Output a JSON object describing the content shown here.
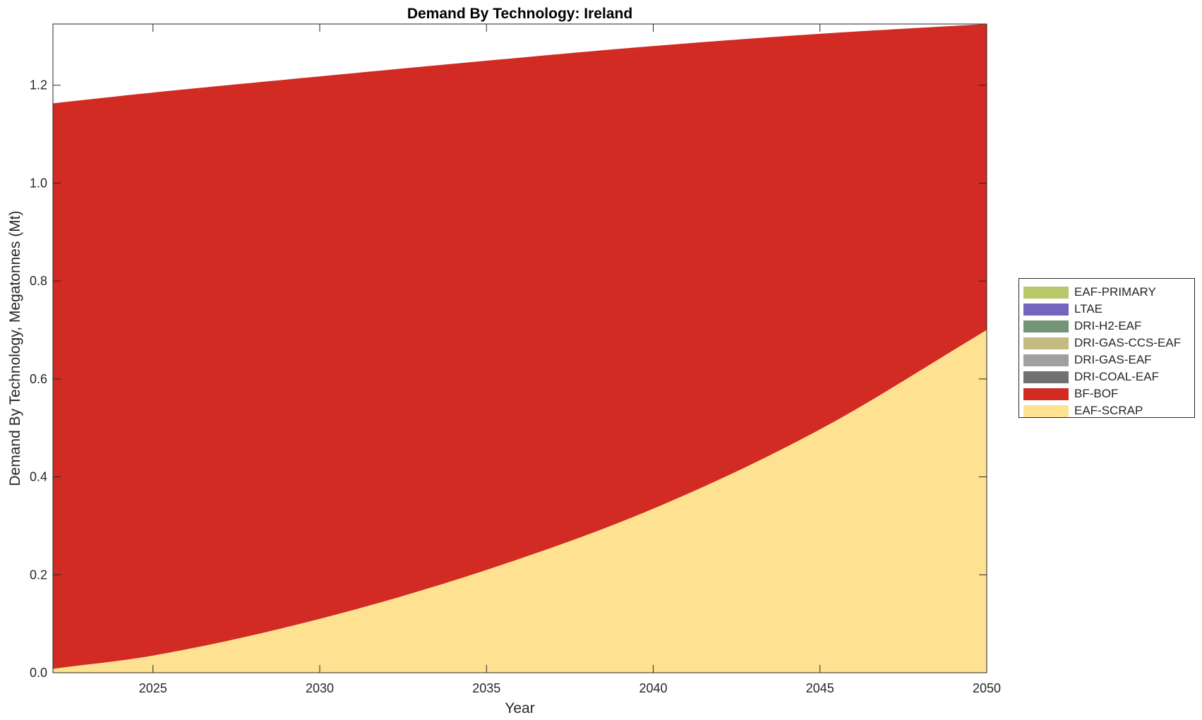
{
  "chart_data": {
    "type": "area",
    "stacked": true,
    "title": "Demand By Technology: Ireland",
    "xlabel": "Year",
    "ylabel": "Demand By Technology, Megatonnes (Mt)",
    "xlim": [
      2022,
      2050
    ],
    "ylim": [
      0,
      1.325
    ],
    "xticks": [
      2025,
      2030,
      2035,
      2040,
      2045,
      2050
    ],
    "xtick_labels": [
      "2025",
      "2030",
      "2035",
      "2040",
      "2045",
      "2050"
    ],
    "yticks": [
      0,
      0.2,
      0.4,
      0.6,
      0.8,
      1.0,
      1.2
    ],
    "ytick_labels": [
      "0.0",
      "0.2",
      "0.4",
      "0.6",
      "0.8",
      "1.0",
      "1.2"
    ],
    "grid": false,
    "legend_position": "right",
    "x": [
      2022,
      2025,
      2030,
      2035,
      2040,
      2045,
      2050
    ],
    "series": [
      {
        "name": "EAF-SCRAP",
        "color": "#FFE291",
        "values": [
          0.008,
          0.035,
          0.11,
          0.21,
          0.335,
          0.497,
          0.7
        ]
      },
      {
        "name": "BF-BOF",
        "color": "#D12B23",
        "values": [
          1.155,
          1.15,
          1.108,
          1.04,
          0.945,
          0.808,
          0.625
        ]
      },
      {
        "name": "DRI-COAL-EAF",
        "color": "#707070",
        "values": [
          0,
          0,
          0,
          0,
          0,
          0,
          0
        ]
      },
      {
        "name": "DRI-GAS-EAF",
        "color": "#A0A0A0",
        "values": [
          0,
          0,
          0,
          0,
          0,
          0,
          0
        ]
      },
      {
        "name": "DRI-GAS-CCS-EAF",
        "color": "#C4BB80",
        "values": [
          0,
          0,
          0,
          0,
          0,
          0,
          0
        ]
      },
      {
        "name": "DRI-H2-EAF",
        "color": "#739478",
        "values": [
          0,
          0,
          0,
          0,
          0,
          0,
          0
        ]
      },
      {
        "name": "LTAE",
        "color": "#7366BD",
        "values": [
          0,
          0,
          0,
          0,
          0,
          0,
          0
        ]
      },
      {
        "name": "EAF-PRIMARY",
        "color": "#BAC76B",
        "values": [
          0,
          0,
          0,
          0,
          0,
          0,
          0
        ]
      }
    ],
    "legend_order": [
      "EAF-PRIMARY",
      "LTAE",
      "DRI-H2-EAF",
      "DRI-GAS-CCS-EAF",
      "DRI-GAS-EAF",
      "DRI-COAL-EAF",
      "BF-BOF",
      "EAF-SCRAP"
    ]
  }
}
